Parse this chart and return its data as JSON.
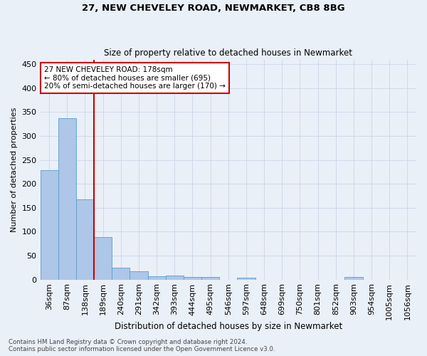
{
  "title1": "27, NEW CHEVELEY ROAD, NEWMARKET, CB8 8BG",
  "title2": "Size of property relative to detached houses in Newmarket",
  "xlabel": "Distribution of detached houses by size in Newmarket",
  "ylabel": "Number of detached properties",
  "bar_labels": [
    "36sqm",
    "87sqm",
    "138sqm",
    "189sqm",
    "240sqm",
    "291sqm",
    "342sqm",
    "393sqm",
    "444sqm",
    "495sqm",
    "546sqm",
    "597sqm",
    "648sqm",
    "699sqm",
    "750sqm",
    "801sqm",
    "852sqm",
    "903sqm",
    "954sqm",
    "1005sqm",
    "1056sqm"
  ],
  "bar_values": [
    228,
    337,
    168,
    88,
    24,
    18,
    7,
    9,
    5,
    5,
    0,
    4,
    0,
    0,
    0,
    0,
    0,
    5,
    0,
    0,
    0
  ],
  "bar_color": "#aec6e8",
  "bar_edge_color": "#5a9ec9",
  "vline_color": "#cc0000",
  "annotation_text": "27 NEW CHEVELEY ROAD: 178sqm\n← 80% of detached houses are smaller (695)\n20% of semi-detached houses are larger (170) →",
  "annotation_box_color": "#ffffff",
  "annotation_box_edge_color": "#cc0000",
  "ylim": [
    0,
    460
  ],
  "yticks": [
    0,
    50,
    100,
    150,
    200,
    250,
    300,
    350,
    400,
    450
  ],
  "grid_color": "#d0d8e8",
  "bg_color": "#eaf0f8",
  "footnote1": "Contains HM Land Registry data © Crown copyright and database right 2024.",
  "footnote2": "Contains public sector information licensed under the Open Government Licence v3.0."
}
